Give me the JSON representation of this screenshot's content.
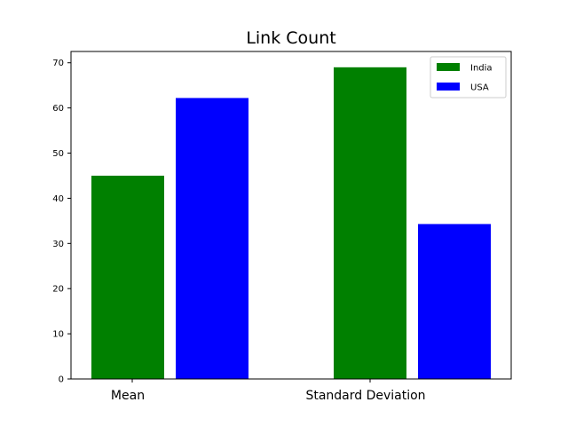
{
  "chart_data": {
    "type": "bar",
    "title": "Link Count",
    "categories": [
      "Mean",
      "Standard Deviation"
    ],
    "series": [
      {
        "name": "India",
        "values": [
          45,
          69
        ],
        "color": "#008000"
      },
      {
        "name": "USA",
        "values": [
          62.2,
          34.3
        ],
        "color": "#0000ff"
      }
    ],
    "ylim": [
      0,
      72.5
    ],
    "yticks": [
      0,
      10,
      20,
      30,
      40,
      50,
      60,
      70
    ],
    "xlabel": "",
    "ylabel": "",
    "grid": false,
    "legend": "top-right"
  }
}
